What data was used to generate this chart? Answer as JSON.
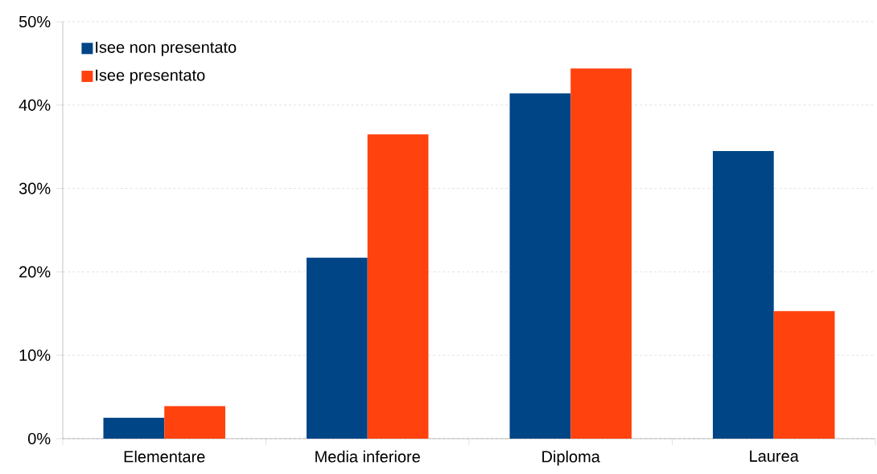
{
  "chart_data": {
    "type": "bar",
    "categories": [
      "Elementare",
      "Media inferiore",
      "Diploma",
      "Laurea"
    ],
    "series": [
      {
        "name": "Isee non presentato",
        "color": "#004586",
        "values": [
          2.5,
          21.7,
          41.4,
          34.5
        ]
      },
      {
        "name": "Isee presentato",
        "color": "#ff420e",
        "values": [
          3.9,
          36.5,
          44.4,
          15.3
        ]
      }
    ],
    "ylim": [
      0,
      50
    ],
    "yticks": [
      {
        "value": 0,
        "label": "0%"
      },
      {
        "value": 10,
        "label": "10%"
      },
      {
        "value": 20,
        "label": "20%"
      },
      {
        "value": 30,
        "label": "30%"
      },
      {
        "value": 40,
        "label": "40%"
      },
      {
        "value": 50,
        "label": "50%"
      }
    ],
    "grid": "y",
    "legend": "top left"
  }
}
